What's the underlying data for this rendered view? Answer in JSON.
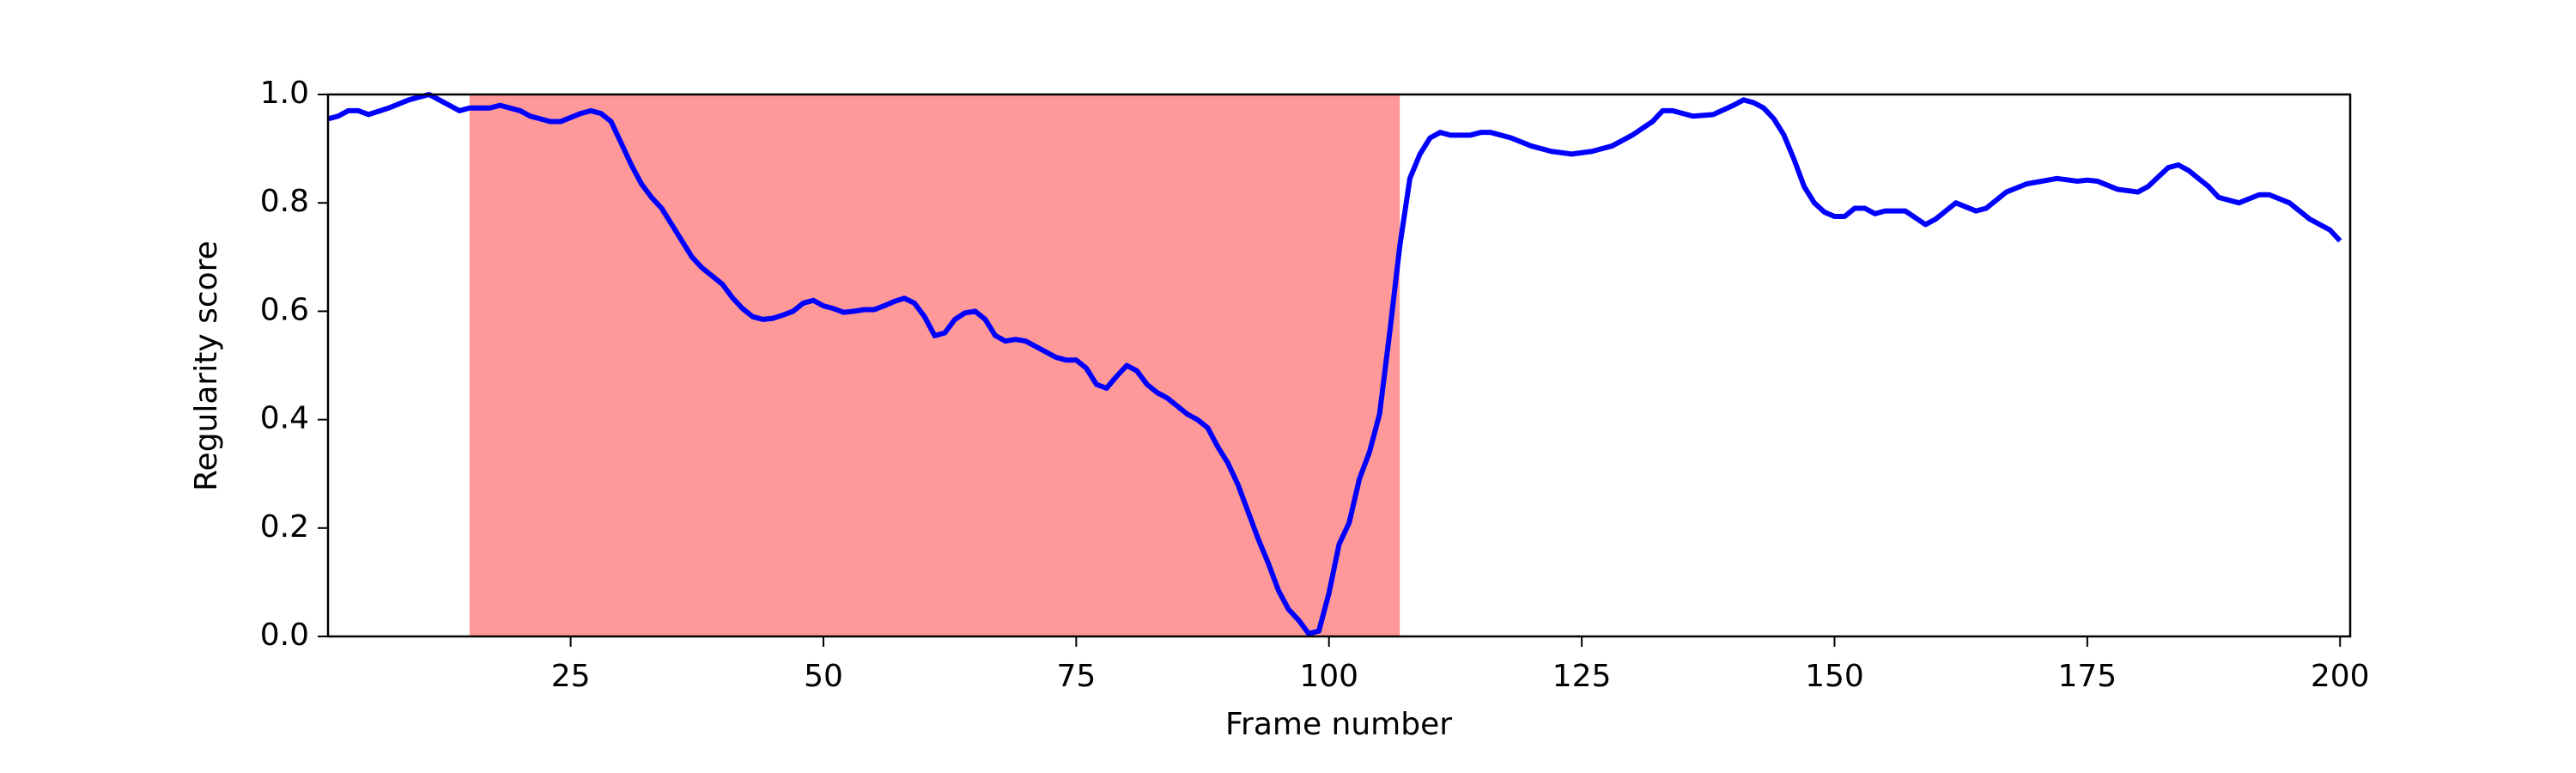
{
  "chart_data": {
    "type": "line",
    "xlabel": "Frame number",
    "ylabel": "Regularity score",
    "x": [
      1,
      2,
      3,
      4,
      5,
      7,
      9,
      10,
      11,
      12,
      13,
      14,
      15,
      17,
      18,
      20,
      21,
      23,
      24,
      26,
      27,
      28,
      29,
      30,
      31,
      32,
      33,
      34,
      35,
      36,
      37,
      38,
      39,
      40,
      41,
      42,
      43,
      44,
      45,
      46,
      47,
      48,
      49,
      50,
      51,
      52,
      53,
      54,
      55,
      56,
      57,
      58,
      59,
      60,
      61,
      62,
      63,
      64,
      65,
      66,
      67,
      68,
      69,
      70,
      71,
      72,
      73,
      74,
      75,
      76,
      77,
      78,
      79,
      80,
      81,
      82,
      83,
      84,
      85,
      86,
      87,
      88,
      89,
      90,
      91,
      92,
      93,
      94,
      95,
      96,
      97,
      98,
      99,
      100,
      101,
      102,
      103,
      104,
      105,
      106,
      107,
      108,
      109,
      110,
      111,
      112,
      114,
      115,
      116,
      118,
      120,
      122,
      124,
      126,
      128,
      130,
      132,
      133,
      134,
      136,
      138,
      140,
      141,
      142,
      143,
      144,
      145,
      146,
      147,
      148,
      149,
      150,
      151,
      152,
      153,
      154,
      155,
      157,
      159,
      160,
      162,
      164,
      165,
      167,
      169,
      172,
      174,
      175,
      176,
      178,
      180,
      181,
      183,
      184,
      185,
      187,
      188,
      190,
      192,
      193,
      195,
      197,
      199,
      200
    ],
    "values": [
      0.955,
      0.96,
      0.97,
      0.97,
      0.963,
      0.975,
      0.99,
      0.995,
      1.0,
      0.99,
      0.98,
      0.97,
      0.975,
      0.975,
      0.98,
      0.97,
      0.96,
      0.95,
      0.95,
      0.965,
      0.97,
      0.965,
      0.95,
      0.91,
      0.87,
      0.835,
      0.81,
      0.79,
      0.76,
      0.73,
      0.7,
      0.68,
      0.665,
      0.65,
      0.625,
      0.605,
      0.59,
      0.585,
      0.587,
      0.593,
      0.6,
      0.615,
      0.62,
      0.61,
      0.605,
      0.598,
      0.6,
      0.603,
      0.603,
      0.61,
      0.618,
      0.624,
      0.615,
      0.59,
      0.555,
      0.56,
      0.585,
      0.597,
      0.6,
      0.585,
      0.555,
      0.545,
      0.548,
      0.545,
      0.535,
      0.525,
      0.515,
      0.51,
      0.51,
      0.495,
      0.465,
      0.458,
      0.48,
      0.5,
      0.49,
      0.465,
      0.45,
      0.44,
      0.425,
      0.41,
      0.4,
      0.385,
      0.35,
      0.32,
      0.28,
      0.23,
      0.18,
      0.135,
      0.085,
      0.05,
      0.03,
      0.005,
      0.01,
      0.08,
      0.17,
      0.21,
      0.29,
      0.34,
      0.41,
      0.56,
      0.72,
      0.845,
      0.89,
      0.92,
      0.93,
      0.925,
      0.925,
      0.93,
      0.93,
      0.92,
      0.905,
      0.895,
      0.89,
      0.895,
      0.905,
      0.925,
      0.95,
      0.97,
      0.97,
      0.96,
      0.963,
      0.98,
      0.99,
      0.985,
      0.975,
      0.955,
      0.925,
      0.88,
      0.83,
      0.8,
      0.783,
      0.775,
      0.775,
      0.79,
      0.79,
      0.78,
      0.785,
      0.785,
      0.76,
      0.77,
      0.8,
      0.785,
      0.79,
      0.82,
      0.835,
      0.845,
      0.84,
      0.842,
      0.84,
      0.825,
      0.82,
      0.83,
      0.865,
      0.87,
      0.86,
      0.83,
      0.81,
      0.8,
      0.815,
      0.815,
      0.8,
      0.77,
      0.75,
      0.73
    ],
    "color": "#0000ff",
    "shaded_region": [
      15,
      107
    ],
    "shade_color": "#ff9999",
    "xlim": [
      1,
      201
    ],
    "xticks": [
      25,
      50,
      75,
      100,
      125,
      150,
      175,
      200
    ],
    "ylim": [
      0,
      1
    ],
    "yticks": [
      {
        "value": 0,
        "label": "0.0"
      },
      {
        "value": 0.2,
        "label": "0.2"
      },
      {
        "value": 0.4,
        "label": "0.4"
      },
      {
        "value": 0.6,
        "label": "0.6"
      },
      {
        "value": 0.8,
        "label": "0.8"
      },
      {
        "value": 1,
        "label": "1.0"
      }
    ]
  }
}
